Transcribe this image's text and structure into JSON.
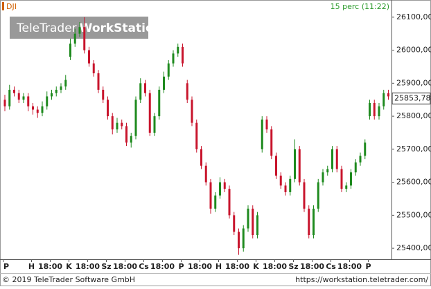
{
  "chart_data": {
    "type": "candlestick",
    "title": "DJI",
    "subtitle": "15 perc (11:22)",
    "watermark": [
      "TeleTrader",
      "WorkStation"
    ],
    "copyright": "© 2019 TeleTrader Software GmbH",
    "url": "https://workstation.teletrader.com/",
    "up_color": "#1e8a1e",
    "down_color": "#c8142c",
    "categories": [
      "P",
      null,
      null,
      null,
      null,
      null,
      "H",
      null,
      null,
      null,
      "18:00",
      null,
      null,
      null,
      "K",
      null,
      null,
      null,
      "18:00",
      null,
      null,
      null,
      "Sz",
      null,
      null,
      null,
      "18:00",
      null,
      null,
      null,
      "Cs",
      null,
      null,
      null,
      "18:00",
      null,
      null,
      null,
      "P",
      null,
      null,
      null,
      "18:00",
      null,
      null,
      null,
      "H",
      null,
      null,
      null,
      "18:00",
      null,
      null,
      null,
      "K",
      null,
      null,
      null,
      "18:00",
      null,
      null,
      null,
      "Sz",
      null,
      null,
      null,
      "18:00",
      null,
      null,
      null,
      "Cs",
      null,
      null,
      null,
      "18:00",
      null,
      null,
      null,
      "P",
      null,
      null,
      null,
      null,
      null
    ],
    "open": [
      25850,
      25830,
      25880,
      25870,
      25850,
      25860,
      25830,
      25820,
      25810,
      25830,
      25860,
      25870,
      25880,
      25890,
      25980,
      26020,
      26050,
      26070,
      26000,
      25960,
      25930,
      25880,
      25850,
      25800,
      25760,
      25780,
      25770,
      25720,
      25740,
      25850,
      25900,
      25870,
      25750,
      25800,
      25880,
      25920,
      25960,
      25990,
      26010,
      25900,
      25850,
      25780,
      25700,
      25650,
      25600,
      25520,
      25560,
      25600,
      25580,
      25500,
      25450,
      25400,
      25460,
      25520,
      25440,
      25700,
      25790,
      25760,
      25680,
      25620,
      25590,
      25570,
      25610,
      25700,
      25600,
      25520,
      25440,
      25520,
      25600,
      25630,
      25640,
      25700,
      25640,
      25580,
      25590,
      25630,
      25660,
      25680,
      25800,
      25840,
      25800,
      25830,
      25870,
      25860
    ],
    "high": [
      25865,
      25895,
      25890,
      25880,
      25870,
      25870,
      25840,
      25830,
      25845,
      25875,
      25880,
      25890,
      25900,
      25925,
      26035,
      26065,
      26085,
      26100,
      26010,
      25970,
      25940,
      25890,
      25860,
      25810,
      25795,
      25790,
      25780,
      25750,
      25860,
      25915,
      25910,
      25880,
      25810,
      25890,
      25935,
      25970,
      26000,
      26020,
      26020,
      25910,
      25860,
      25790,
      25710,
      25660,
      25610,
      25570,
      25615,
      25610,
      25590,
      25510,
      25460,
      25470,
      25530,
      25530,
      25510,
      25800,
      25800,
      25770,
      25690,
      25630,
      25600,
      25620,
      25730,
      25710,
      25610,
      25530,
      25530,
      25610,
      25640,
      25650,
      25710,
      25710,
      25650,
      25600,
      25640,
      25670,
      25690,
      25730,
      25850,
      25850,
      25840,
      25880,
      25880,
      25870
    ],
    "low": [
      25815,
      25820,
      25860,
      25840,
      25840,
      25815,
      25805,
      25795,
      25800,
      25820,
      25850,
      25860,
      25870,
      25880,
      25970,
      26010,
      26040,
      25990,
      25950,
      25920,
      25870,
      25840,
      25790,
      25745,
      25750,
      25760,
      25710,
      25705,
      25730,
      25840,
      25860,
      25740,
      25740,
      25790,
      25870,
      25910,
      25950,
      25980,
      25950,
      25840,
      25770,
      25690,
      25640,
      25590,
      25505,
      25510,
      25550,
      25570,
      25490,
      25440,
      25380,
      25390,
      25450,
      25430,
      25430,
      25690,
      25750,
      25670,
      25610,
      25580,
      25560,
      25560,
      25600,
      25590,
      25510,
      25430,
      25430,
      25510,
      25590,
      25620,
      25630,
      25630,
      25570,
      25570,
      25580,
      25620,
      25650,
      25670,
      25790,
      25790,
      25790,
      25820,
      25850,
      25845
    ],
    "close": [
      25830,
      25880,
      25870,
      25850,
      25860,
      25830,
      25820,
      25810,
      25830,
      25860,
      25870,
      25880,
      25890,
      25910,
      26020,
      26050,
      26070,
      26000,
      25960,
      25930,
      25880,
      25850,
      25800,
      25760,
      25780,
      25770,
      25720,
      25740,
      25850,
      25900,
      25870,
      25750,
      25800,
      25880,
      25920,
      25960,
      25990,
      26010,
      25960,
      25850,
      25780,
      25700,
      25650,
      25600,
      25520,
      25560,
      25600,
      25580,
      25500,
      25450,
      25400,
      25460,
      25520,
      25440,
      25500,
      25790,
      25760,
      25680,
      25620,
      25590,
      25570,
      25610,
      25700,
      25600,
      25520,
      25440,
      25520,
      25600,
      25630,
      25640,
      25700,
      25640,
      25580,
      25590,
      25630,
      25660,
      25680,
      25720,
      25840,
      25800,
      25830,
      25870,
      25860,
      25853.78
    ],
    "last_label": "25853,78",
    "ylim": [
      25373,
      26152
    ],
    "yticks": [
      {
        "value": 25400,
        "label": "25400,00"
      },
      {
        "value": 25500,
        "label": "25500,00"
      },
      {
        "value": 25600,
        "label": "25600,00"
      },
      {
        "value": 25700,
        "label": "25700,00"
      },
      {
        "value": 25800,
        "label": "25800,00"
      },
      {
        "value": 25900,
        "label": "25900,00"
      },
      {
        "value": 26000,
        "label": "26000,00"
      },
      {
        "value": 26100,
        "label": "26100,00"
      }
    ]
  }
}
